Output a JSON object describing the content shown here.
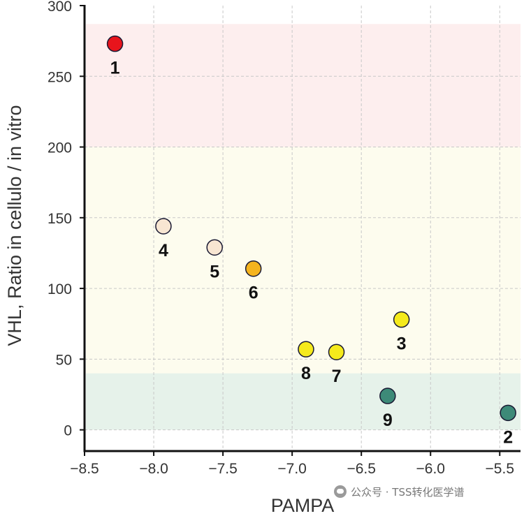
{
  "chart_data": {
    "type": "scatter",
    "title": "",
    "xlabel": "PAMPA",
    "ylabel": "VHL, Ratio in cellulo / in vitro",
    "xlim": [
      -8.5,
      -5.35
    ],
    "ylim": [
      -15,
      300
    ],
    "xticks": [
      -8.5,
      -8.0,
      -7.5,
      -7.0,
      -6.5,
      -6.0,
      -5.5
    ],
    "xtick_labels": [
      "−8.5",
      "−8.0",
      "−7.5",
      "−7.0",
      "−6.5",
      "−6.0",
      "−5.5"
    ],
    "yticks": [
      0,
      50,
      100,
      150,
      200,
      250,
      300
    ],
    "ytick_labels": [
      "0",
      "50",
      "100",
      "150",
      "200",
      "250",
      "300"
    ],
    "grid": true,
    "bands": [
      {
        "from": 0,
        "to": 40,
        "color": "#e6f2ea"
      },
      {
        "from": 40,
        "to": 200,
        "color": "#fdfcee"
      },
      {
        "from": 200,
        "to": 287,
        "color": "#fdeeee"
      }
    ],
    "points": [
      {
        "label": "1",
        "x": -8.28,
        "y": 273,
        "color": "#e8141c"
      },
      {
        "label": "2",
        "x": -5.44,
        "y": 12,
        "color": "#3d8a78"
      },
      {
        "label": "3",
        "x": -6.21,
        "y": 78,
        "color": "#f5ea1c"
      },
      {
        "label": "4",
        "x": -7.93,
        "y": 144,
        "color": "#f8e6d2"
      },
      {
        "label": "5",
        "x": -7.56,
        "y": 129,
        "color": "#f8e6d2"
      },
      {
        "label": "6",
        "x": -7.28,
        "y": 114,
        "color": "#f5b41e"
      },
      {
        "label": "7",
        "x": -6.68,
        "y": 55,
        "color": "#f5ea1c"
      },
      {
        "label": "8",
        "x": -6.9,
        "y": 57,
        "color": "#f5ea1c"
      },
      {
        "label": "9",
        "x": -6.31,
        "y": 24,
        "color": "#3d8a78"
      }
    ]
  },
  "watermark": {
    "text": "公众号 · TSS转化医学谱"
  }
}
